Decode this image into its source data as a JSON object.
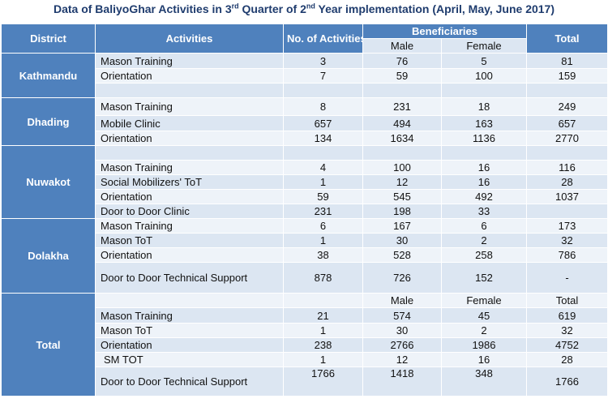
{
  "title": {
    "pre": "Data of BaliyoGhar  Activities in 3",
    "sup1": "rd",
    "mid": " Quarter of 2",
    "sup2": "nd",
    "post": " Year implementation  (April, May, June 2017)"
  },
  "header": {
    "district": "District",
    "activities": "Activities",
    "no_of_activities": "No. of Activities",
    "beneficiaries": "Beneficiaries",
    "male": "Male",
    "female": "Female",
    "total": "Total"
  },
  "kathmandu": {
    "name": "Kathmandu",
    "rows": [
      {
        "activity": "Mason Training",
        "no": "3",
        "male": "76",
        "female": "5",
        "total": "81"
      },
      {
        "activity": "Orientation",
        "no": "7",
        "male": "59",
        "female": "100",
        "total": "159"
      }
    ]
  },
  "dhading": {
    "name": "Dhading",
    "rows": [
      {
        "activity": "Mason Training",
        "no": "8",
        "male": "231",
        "female": "18",
        "total": "249"
      },
      {
        "activity": "Mobile Clinic",
        "no": "657",
        "male": "494",
        "female": "163",
        "total": "657"
      },
      {
        "activity": "Orientation",
        "no": "134",
        "male": "1634",
        "female": "1136",
        "total": "2770"
      }
    ]
  },
  "nuwakot": {
    "name": "Nuwakot",
    "rows": [
      {
        "activity": "Mason Training",
        "no": "4",
        "male": "100",
        "female": "16",
        "total": "116"
      },
      {
        "activity": "Social Mobilizers' ToT",
        "no": "1",
        "male": "12",
        "female": "16",
        "total": "28"
      },
      {
        "activity": "Orientation",
        "no": "59",
        "male": "545",
        "female": "492",
        "total": "1037"
      },
      {
        "activity": "Door to Door Clinic",
        "no": "231",
        "male": "198",
        "female": "33",
        "total": ""
      }
    ]
  },
  "dolakha": {
    "name": "Dolakha",
    "rows": [
      {
        "activity": "Mason Training",
        "no": "6",
        "male": "167",
        "female": "6",
        "total": "173"
      },
      {
        "activity": "Mason ToT",
        "no": "1",
        "male": "30",
        "female": "2",
        "total": "32"
      },
      {
        "activity": "Orientation",
        "no": "38",
        "male": "528",
        "female": "258",
        "total": "786"
      },
      {
        "activity": "Door to Door Technical Support",
        "no": "878",
        "male": "726",
        "female": "152",
        "total": "-"
      }
    ]
  },
  "total": {
    "name": "Total",
    "sub_header": {
      "male": "Male",
      "female": "Female",
      "total": "Total"
    },
    "rows": [
      {
        "activity": "Mason Training",
        "no": "21",
        "male": "574",
        "female": "45",
        "total": "619"
      },
      {
        "activity": "Mason ToT",
        "no": "1",
        "male": "30",
        "female": "2",
        "total": "32"
      },
      {
        "activity": "Orientation",
        "no": "238",
        "male": "2766",
        "female": "1986",
        "total": "4752"
      },
      {
        "activity": "SM TOT",
        "no": "1",
        "male": "12",
        "female": "16",
        "total": "28"
      },
      {
        "activity": "Door to Door Technical Support",
        "no": "1766",
        "male": "1418",
        "female": "348",
        "total": "1766"
      }
    ]
  }
}
